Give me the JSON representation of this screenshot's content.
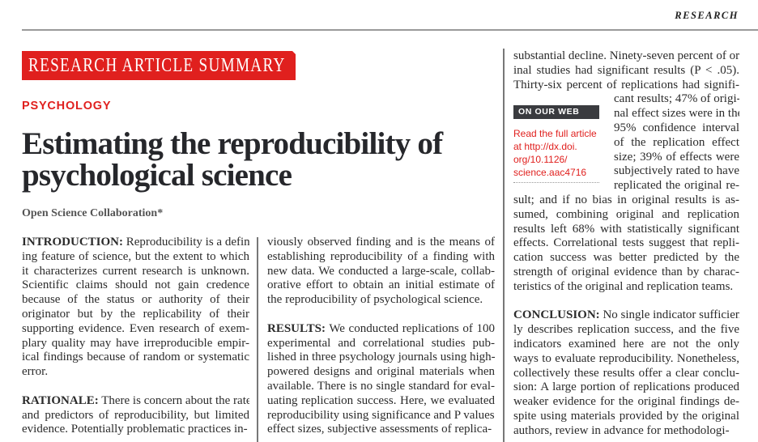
{
  "header": {
    "section": "RESEARCH"
  },
  "banner": {
    "label": "RESEARCH ARTICLE SUMMARY"
  },
  "kicker": "PSYCHOLOGY",
  "title": [
    "Estimating the reproducibility of",
    "psychological science"
  ],
  "author": "Open Science Collaboration*",
  "sidebar": {
    "web_label": "ON OUR WEB SITE",
    "link_lines": [
      "Read the full article",
      "at http://dx.doi.",
      "org/10.1126/",
      "science.aac4716"
    ]
  },
  "columns": [
    [
      {
        "lead": "INTRODUCTION:",
        "lines": [
          " Reproducibility is a defin-",
          "ing feature of science, but the extent to which",
          "it characterizes current research is unknown.",
          "Scientific claims should not gain credence",
          "because of the status or authority of their",
          "originator but by the replicability of their",
          "supporting evidence. Even research of exem-",
          "plary quality may have irreproducible empir-",
          "ical findings because of random or systematic",
          "error."
        ]
      },
      {
        "lead": "RATIONALE:",
        "lines": [
          " There is concern about the rate",
          "and predictors of reproducibility, but limited",
          "evidence. Potentially problematic practices in-"
        ]
      }
    ],
    [
      {
        "lead": "",
        "lines": [
          "viously observed finding and is the means of",
          "establishing reproducibility of a finding with",
          "new data. We conducted a large-scale, collab-",
          "orative effort to obtain an initial estimate of",
          "the reproducibility of psychological science."
        ]
      },
      {
        "lead": "RESULTS:",
        "lines": [
          " We conducted replications of 100",
          "experimental and correlational studies pub-",
          "lished in three psychology journals using high-",
          "powered designs and original materials when",
          "available. There is no single standard for eval-",
          "uating replication success. Here, we evaluated",
          "reproducibility using significance and P values,",
          "effect sizes, subjective assessments of replica-"
        ]
      }
    ],
    [
      {
        "lead": "",
        "lines": [
          "substantial decline. Ninety-seven percent of orig-",
          "inal studies had significant results (P < .05).",
          "Thirty-six percent of replications had signifi-"
        ]
      },
      {
        "lead": "",
        "narrow": true,
        "lines": [
          "cant results; 47% of origi-",
          "nal effect sizes were in the",
          "95% confidence interval",
          "of the replication effect",
          "size; 39% of effects were",
          "subjectively rated to have",
          "replicated the original re-"
        ]
      },
      {
        "lead": "",
        "lines": [
          "sult; and if no bias in original results is as-",
          "sumed, combining original and replication",
          "results left 68% with statistically significant",
          "effects. Correlational tests suggest that repli-",
          "cation success was better predicted by the",
          "strength of original evidence than by charac-",
          "teristics of the original and replication teams."
        ]
      },
      {
        "lead": "CONCLUSION:",
        "lines": [
          " No single indicator sufficient-",
          "ly describes replication success, and the five",
          "indicators examined here are not the only",
          "ways to evaluate reproducibility. Nonetheless,",
          "collectively these results offer a clear conclu-",
          "sion: A large portion of replications produced",
          "weaker evidence for the original findings de-",
          "spite using materials provided by the original",
          "authors, review in advance for methodologi-"
        ]
      }
    ]
  ]
}
